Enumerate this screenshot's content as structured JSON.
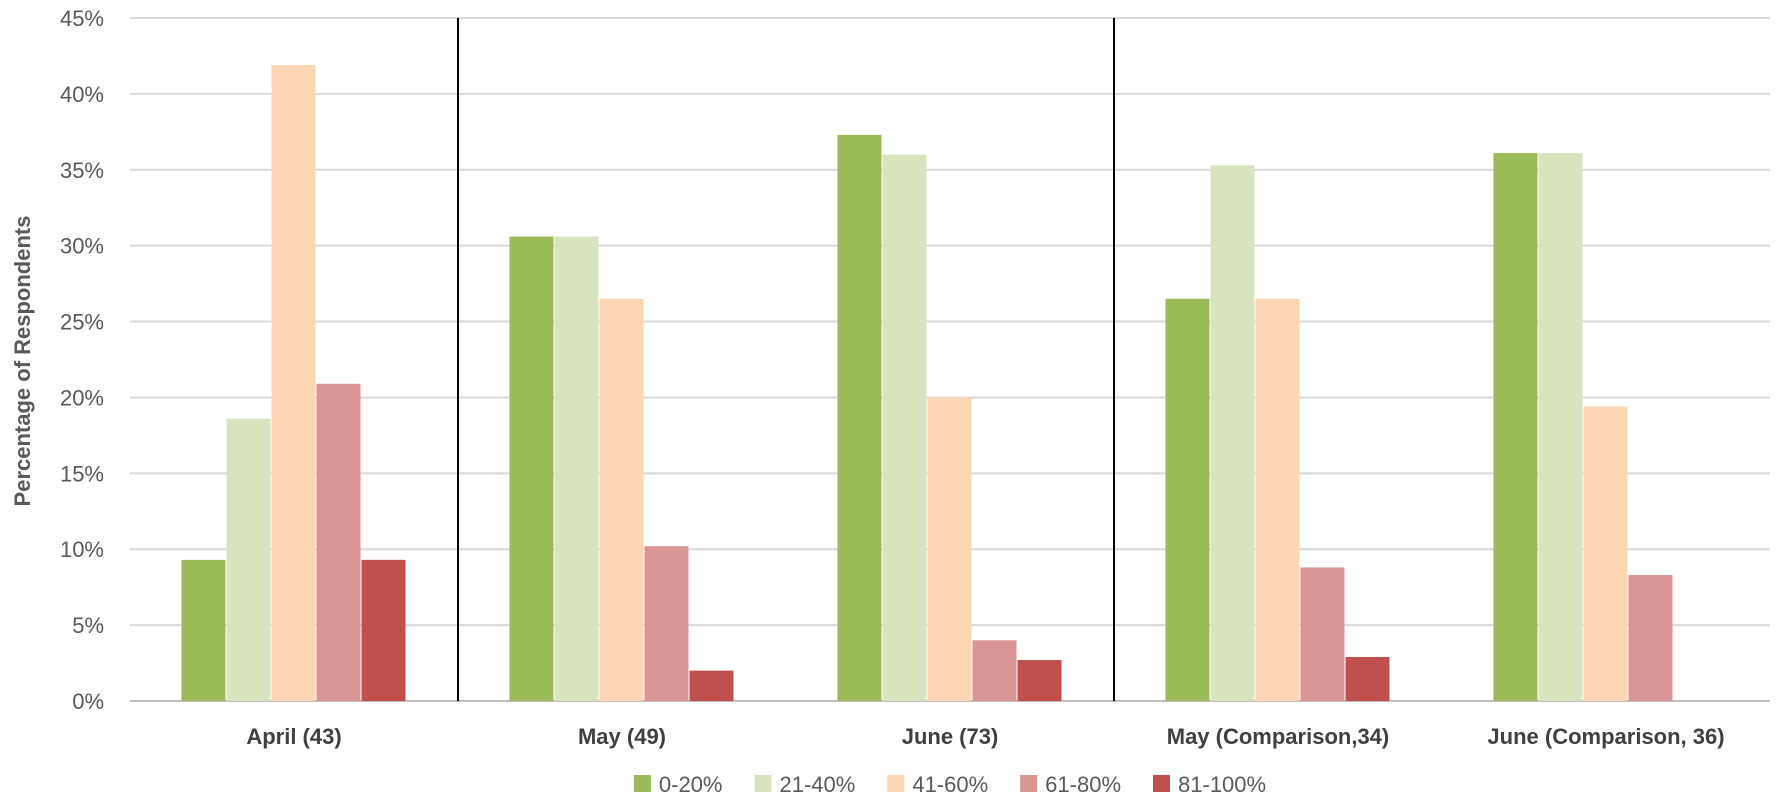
{
  "chart_data": {
    "type": "bar",
    "title": "",
    "xlabel": "",
    "ylabel": "Percentage of Respondents",
    "ylim": [
      0,
      45
    ],
    "yticks": [
      "0%",
      "5%",
      "10%",
      "15%",
      "20%",
      "25%",
      "30%",
      "35%",
      "40%",
      "45%"
    ],
    "ytick_values": [
      0,
      5,
      10,
      15,
      20,
      25,
      30,
      35,
      40,
      45
    ],
    "grid": true,
    "legend_position": "bottom",
    "categories": [
      "April (43)",
      "May (49)",
      "June (73)",
      "May (Comparison,34)",
      "June (Comparison, 36)"
    ],
    "group_separators_after": [
      0,
      2
    ],
    "series": [
      {
        "name": "0-20%",
        "color": "#9BBB59",
        "values": [
          9.3,
          30.6,
          37.3,
          26.5,
          36.1
        ]
      },
      {
        "name": "21-40%",
        "color": "#D7E4BD",
        "values": [
          18.6,
          30.6,
          36.0,
          35.3,
          36.1
        ]
      },
      {
        "name": "41-60%",
        "color": "#FCD5B5",
        "values": [
          41.9,
          26.5,
          20.0,
          26.5,
          19.4
        ]
      },
      {
        "name": "61-80%",
        "color": "#D99694",
        "values": [
          20.9,
          10.2,
          4.0,
          8.8,
          8.3
        ]
      },
      {
        "name": "81-100%",
        "color": "#C0504D",
        "values": [
          9.3,
          2.0,
          2.7,
          2.9,
          0
        ]
      }
    ]
  }
}
